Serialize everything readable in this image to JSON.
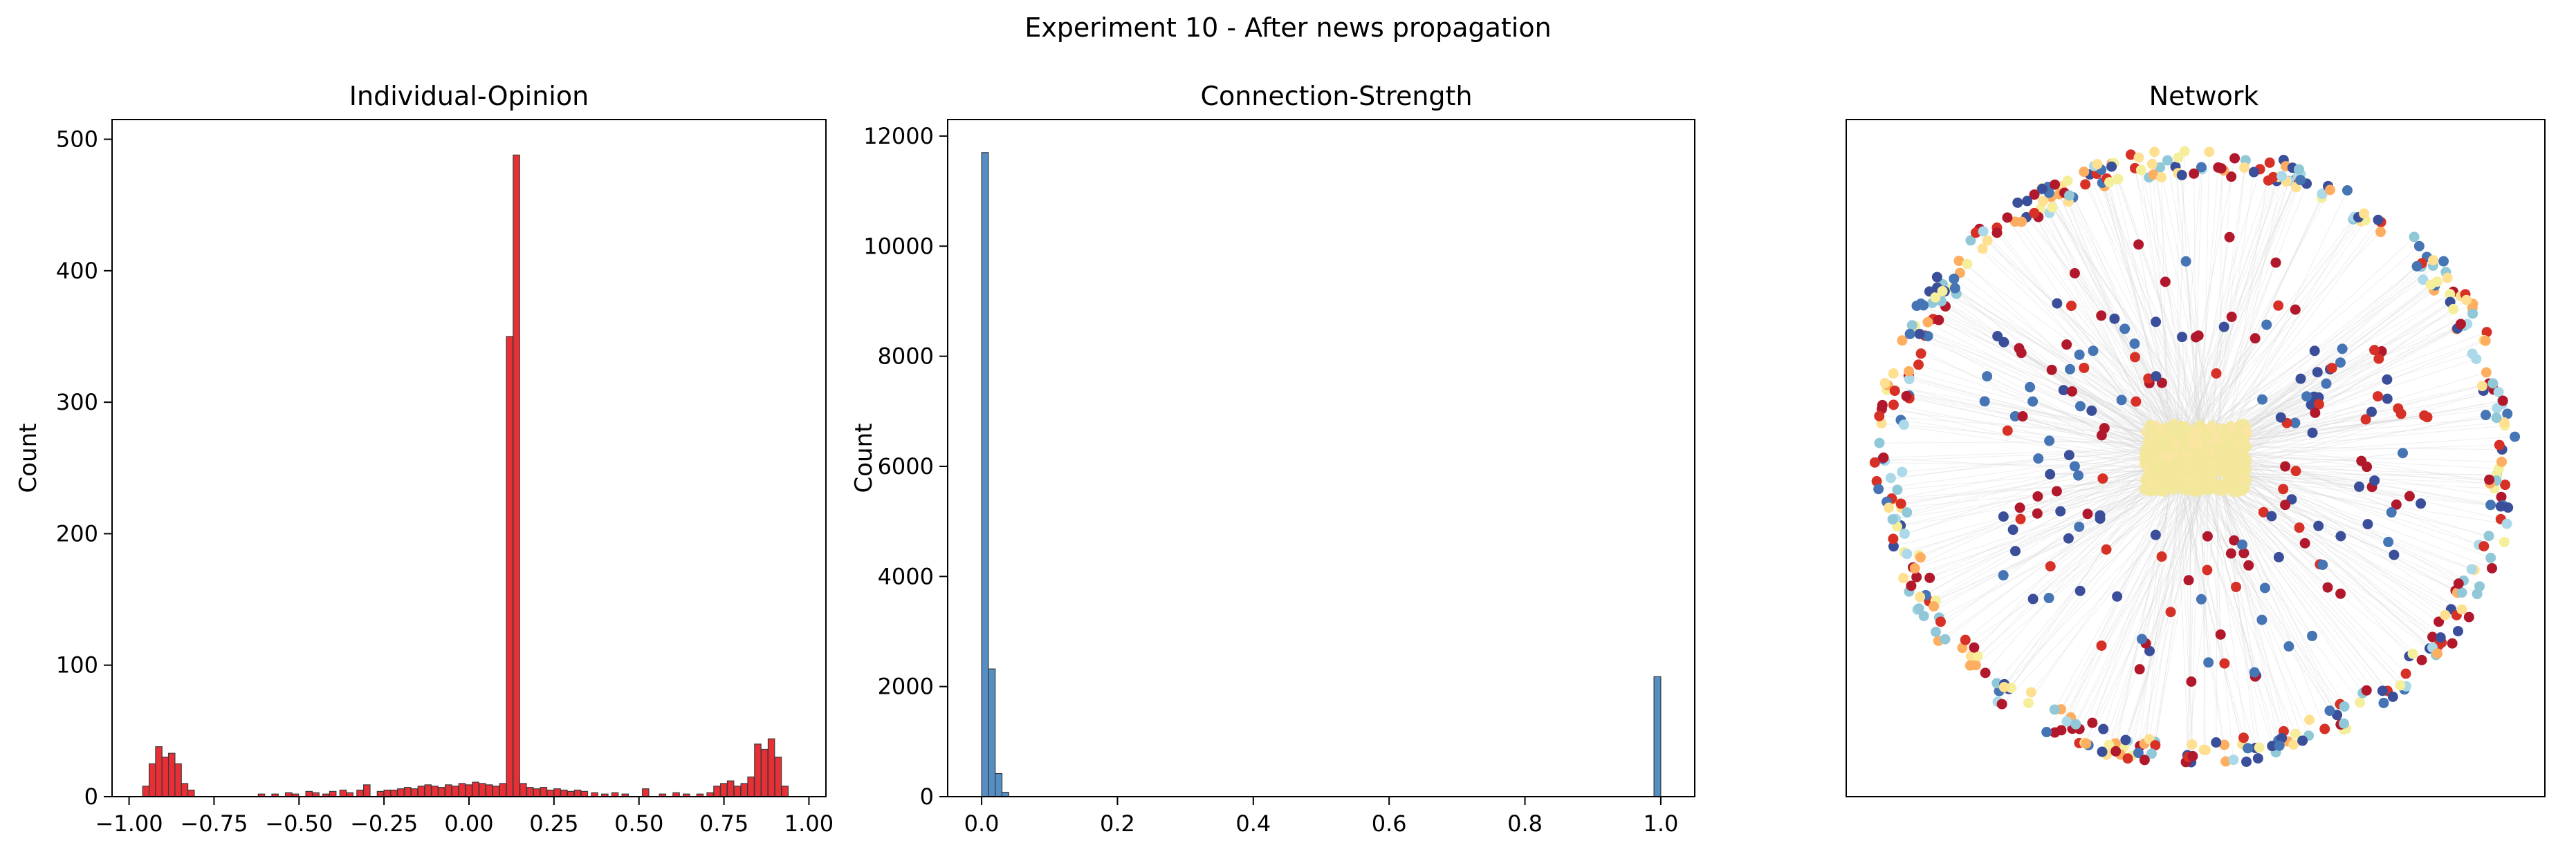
{
  "figure": {
    "suptitle": "Experiment 10 - After news propagation",
    "colors": {
      "opinion_bar": "#e8242b",
      "strength_bar": "#4c88bf",
      "edge": "#d8d8d8"
    }
  },
  "chart_data": [
    {
      "type": "bar",
      "title": "Individual-Opinion",
      "xlabel": "",
      "ylabel": "Count",
      "xlim": [
        -1.05,
        1.05
      ],
      "ylim": [
        0,
        515
      ],
      "xticks": [
        -1.0,
        -0.75,
        -0.5,
        -0.25,
        0.0,
        0.25,
        0.5,
        0.75,
        1.0
      ],
      "xtick_labels": [
        "−1.00",
        "−0.75",
        "−0.50",
        "−0.25",
        "0.00",
        "0.25",
        "0.50",
        "0.75",
        "1.00"
      ],
      "yticks": [
        0,
        100,
        200,
        300,
        400,
        500
      ],
      "ytick_labels": [
        "0",
        "100",
        "200",
        "300",
        "400",
        "500"
      ],
      "bin_width": 0.019,
      "bins": [
        [
          -0.96,
          8
        ],
        [
          -0.941,
          25
        ],
        [
          -0.922,
          38
        ],
        [
          -0.903,
          30
        ],
        [
          -0.884,
          33
        ],
        [
          -0.865,
          25
        ],
        [
          -0.846,
          10
        ],
        [
          -0.827,
          5
        ],
        [
          -0.62,
          2
        ],
        [
          -0.58,
          2
        ],
        [
          -0.54,
          3
        ],
        [
          -0.52,
          2
        ],
        [
          -0.48,
          4
        ],
        [
          -0.46,
          3
        ],
        [
          -0.43,
          2
        ],
        [
          -0.41,
          4
        ],
        [
          -0.38,
          5
        ],
        [
          -0.36,
          3
        ],
        [
          -0.33,
          5
        ],
        [
          -0.31,
          9
        ],
        [
          -0.27,
          4
        ],
        [
          -0.25,
          5
        ],
        [
          -0.23,
          5
        ],
        [
          -0.21,
          6
        ],
        [
          -0.19,
          7
        ],
        [
          -0.17,
          6
        ],
        [
          -0.15,
          8
        ],
        [
          -0.13,
          9
        ],
        [
          -0.11,
          8
        ],
        [
          -0.09,
          7
        ],
        [
          -0.07,
          9
        ],
        [
          -0.05,
          8
        ],
        [
          -0.03,
          10
        ],
        [
          -0.01,
          9
        ],
        [
          0.01,
          11
        ],
        [
          0.03,
          10
        ],
        [
          0.05,
          9
        ],
        [
          0.07,
          8
        ],
        [
          0.09,
          10
        ],
        [
          0.11,
          350
        ],
        [
          0.13,
          488
        ],
        [
          0.15,
          10
        ],
        [
          0.17,
          7
        ],
        [
          0.19,
          6
        ],
        [
          0.21,
          7
        ],
        [
          0.23,
          5
        ],
        [
          0.25,
          6
        ],
        [
          0.27,
          5
        ],
        [
          0.29,
          4
        ],
        [
          0.31,
          5
        ],
        [
          0.33,
          4
        ],
        [
          0.36,
          3
        ],
        [
          0.39,
          2
        ],
        [
          0.42,
          3
        ],
        [
          0.45,
          2
        ],
        [
          0.51,
          6
        ],
        [
          0.56,
          2
        ],
        [
          0.6,
          3
        ],
        [
          0.63,
          2
        ],
        [
          0.67,
          2
        ],
        [
          0.7,
          3
        ],
        [
          0.72,
          8
        ],
        [
          0.74,
          10
        ],
        [
          0.76,
          12
        ],
        [
          0.78,
          8
        ],
        [
          0.8,
          10
        ],
        [
          0.82,
          15
        ],
        [
          0.84,
          40
        ],
        [
          0.86,
          36
        ],
        [
          0.88,
          44
        ],
        [
          0.9,
          30
        ],
        [
          0.92,
          8
        ]
      ]
    },
    {
      "type": "bar",
      "title": "Connection-Strength",
      "xlabel": "",
      "ylabel": "Count",
      "xlim": [
        -0.05,
        1.05
      ],
      "ylim": [
        0,
        12300
      ],
      "xticks": [
        0.0,
        0.2,
        0.4,
        0.6,
        0.8,
        1.0
      ],
      "xtick_labels": [
        "0.0",
        "0.2",
        "0.4",
        "0.6",
        "0.8",
        "1.0"
      ],
      "yticks": [
        0,
        2000,
        4000,
        6000,
        8000,
        10000,
        12000
      ],
      "ytick_labels": [
        "0",
        "2000",
        "4000",
        "6000",
        "8000",
        "10000",
        "12000"
      ],
      "bin_width": 0.01,
      "bins": [
        [
          0.0,
          11700
        ],
        [
          0.01,
          2320
        ],
        [
          0.02,
          420
        ],
        [
          0.03,
          80
        ],
        [
          0.99,
          2180
        ]
      ]
    },
    {
      "type": "network",
      "title": "Network",
      "node_colors": [
        "#b2182b",
        "#d73027",
        "#3b4e9a",
        "#4575b4",
        "#91c8d8",
        "#abd9e9",
        "#fee090",
        "#f5ee9a",
        "#fdae61"
      ]
    }
  ]
}
